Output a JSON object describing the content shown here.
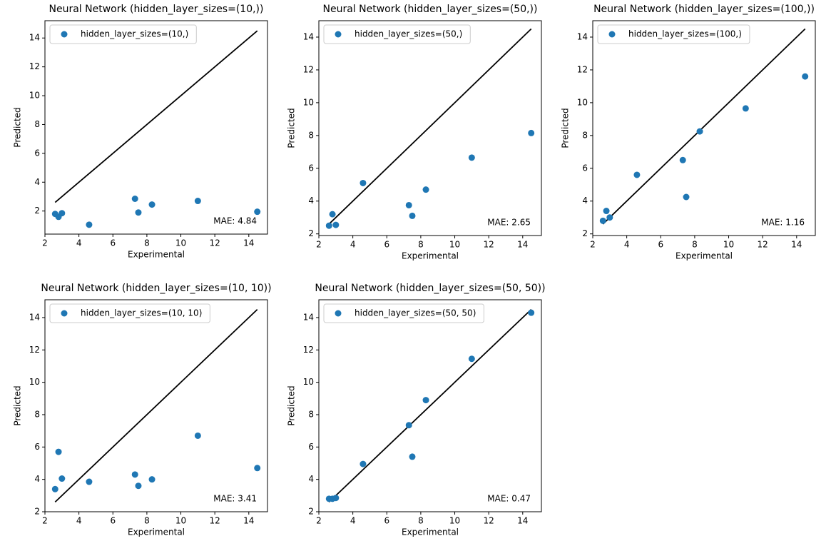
{
  "chart_data": [
    {
      "type": "scatter",
      "title": "Neural Network (hidden_layer_sizes=(10,))",
      "x_label": "Experimental",
      "y_label": "Predicted",
      "x": [
        2.6,
        2.8,
        3.0,
        4.6,
        7.3,
        7.5,
        8.3,
        11.0,
        14.5
      ],
      "series": [
        {
          "name": "hidden_layer_sizes=(10,)",
          "color": "#1f77b4",
          "values": [
            1.8,
            1.6,
            1.85,
            1.05,
            2.85,
            1.9,
            2.45,
            2.7,
            1.95
          ]
        }
      ],
      "line": {
        "x": [
          2.6,
          14.5
        ],
        "y": [
          2.6,
          14.5
        ],
        "color": "#000000"
      },
      "annotation": "MAE: 4.84",
      "legend": "upper left",
      "xlim": [
        2.0,
        15.1
      ],
      "ylim": [
        0.4,
        15.2
      ],
      "xticks": [
        2,
        4,
        6,
        8,
        10,
        12,
        14
      ],
      "yticks": [
        2,
        4,
        6,
        8,
        10,
        12,
        14
      ]
    },
    {
      "type": "scatter",
      "title": "Neural Network (hidden_layer_sizes=(50,))",
      "x_label": "Experimental",
      "y_label": "Predicted",
      "x": [
        2.6,
        2.8,
        3.0,
        4.6,
        7.3,
        7.5,
        8.3,
        11.0,
        14.5
      ],
      "series": [
        {
          "name": "hidden_layer_sizes=(50,)",
          "color": "#1f77b4",
          "values": [
            2.5,
            3.2,
            2.55,
            5.1,
            3.75,
            3.1,
            4.7,
            6.65,
            8.15
          ]
        }
      ],
      "line": {
        "x": [
          2.6,
          14.5
        ],
        "y": [
          2.6,
          14.5
        ],
        "color": "#000000"
      },
      "annotation": "MAE: 2.65",
      "legend": "upper left",
      "xlim": [
        2.0,
        15.1
      ],
      "ylim": [
        1.9,
        15.0
      ],
      "xticks": [
        2,
        4,
        6,
        8,
        10,
        12,
        14
      ],
      "yticks": [
        2,
        4,
        6,
        8,
        10,
        12,
        14
      ]
    },
    {
      "type": "scatter",
      "title": "Neural Network (hidden_layer_sizes=(100,))",
      "x_label": "Experimental",
      "y_label": "Predicted",
      "x": [
        2.6,
        2.8,
        3.0,
        4.6,
        7.3,
        7.5,
        8.3,
        11.0,
        14.5
      ],
      "series": [
        {
          "name": "hidden_layer_sizes=(100,)",
          "color": "#1f77b4",
          "values": [
            2.8,
            3.4,
            3.0,
            5.6,
            6.5,
            4.25,
            8.25,
            9.65,
            11.6
          ]
        }
      ],
      "line": {
        "x": [
          2.6,
          14.5
        ],
        "y": [
          2.6,
          14.5
        ],
        "color": "#000000"
      },
      "annotation": "MAE: 1.16",
      "legend": "upper left",
      "xlim": [
        2.0,
        15.1
      ],
      "ylim": [
        1.9,
        15.0
      ],
      "xticks": [
        2,
        4,
        6,
        8,
        10,
        12,
        14
      ],
      "yticks": [
        2,
        4,
        6,
        8,
        10,
        12,
        14
      ]
    },
    {
      "type": "scatter",
      "title": "Neural Network (hidden_layer_sizes=(10, 10))",
      "x_label": "Experimental",
      "y_label": "Predicted",
      "x": [
        2.6,
        2.8,
        3.0,
        4.6,
        7.3,
        7.5,
        8.3,
        11.0,
        14.5
      ],
      "series": [
        {
          "name": "hidden_layer_sizes=(10, 10)",
          "color": "#1f77b4",
          "values": [
            3.4,
            5.7,
            4.05,
            3.85,
            4.3,
            3.6,
            4.0,
            6.7,
            4.7
          ]
        }
      ],
      "line": {
        "x": [
          2.6,
          14.5
        ],
        "y": [
          2.6,
          14.5
        ],
        "color": "#000000"
      },
      "annotation": "MAE: 3.41",
      "legend": "upper left",
      "xlim": [
        2.0,
        15.1
      ],
      "ylim": [
        2.0,
        15.1
      ],
      "xticks": [
        2,
        4,
        6,
        8,
        10,
        12,
        14
      ],
      "yticks": [
        2,
        4,
        6,
        8,
        10,
        12,
        14
      ]
    },
    {
      "type": "scatter",
      "title": "Neural Network (hidden_layer_sizes=(50, 50))",
      "x_label": "Experimental",
      "y_label": "Predicted",
      "x": [
        2.6,
        2.8,
        3.0,
        4.6,
        7.3,
        7.5,
        8.3,
        11.0,
        14.5
      ],
      "series": [
        {
          "name": "hidden_layer_sizes=(50, 50)",
          "color": "#1f77b4",
          "values": [
            2.8,
            2.8,
            2.85,
            4.95,
            7.35,
            5.4,
            8.9,
            11.45,
            14.3
          ]
        }
      ],
      "line": {
        "x": [
          2.6,
          14.5
        ],
        "y": [
          2.6,
          14.5
        ],
        "color": "#000000"
      },
      "annotation": "MAE: 0.47",
      "legend": "upper left",
      "xlim": [
        2.0,
        15.1
      ],
      "ylim": [
        2.0,
        15.1
      ],
      "xticks": [
        2,
        4,
        6,
        8,
        10,
        12,
        14
      ],
      "yticks": [
        2,
        4,
        6,
        8,
        10,
        12,
        14
      ]
    }
  ]
}
